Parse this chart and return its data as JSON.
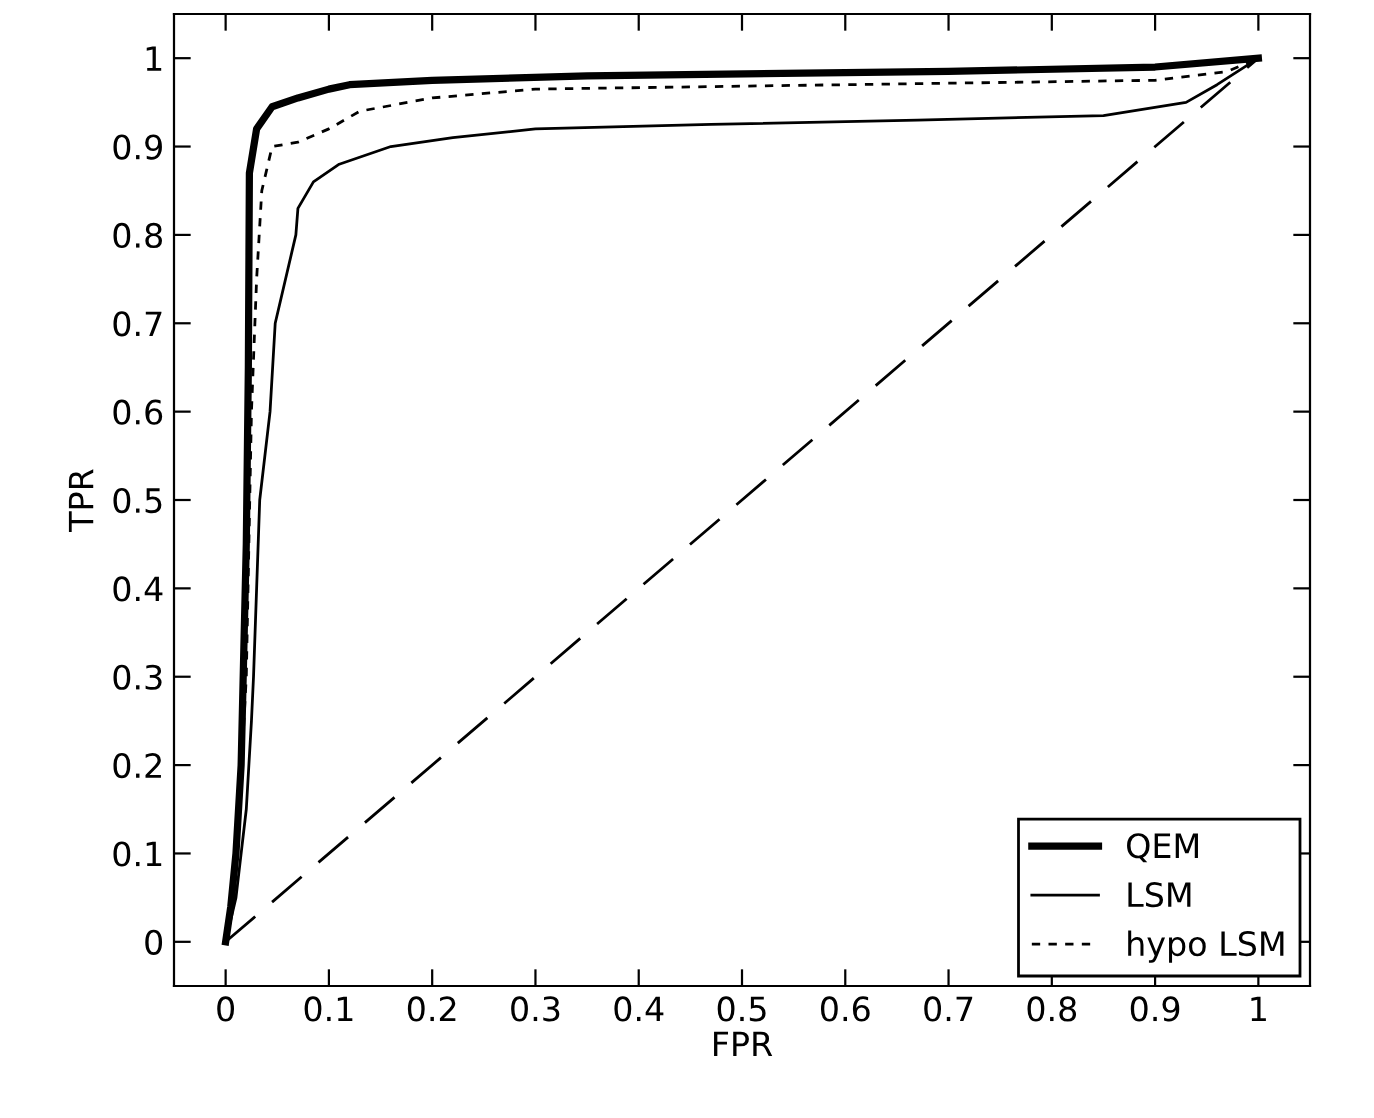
{
  "chart_data": {
    "type": "line",
    "xlabel": "FPR",
    "ylabel": "TPR",
    "xlim": [
      -0.05,
      1.05
    ],
    "ylim": [
      -0.05,
      1.05
    ],
    "xticks": [
      0,
      0.1,
      0.2,
      0.3,
      0.4,
      0.5,
      0.6,
      0.7,
      0.8,
      0.9,
      1
    ],
    "yticks": [
      0,
      0.1,
      0.2,
      0.3,
      0.4,
      0.5,
      0.6,
      0.7,
      0.8,
      0.9,
      1
    ],
    "grid": false,
    "legend": "bottom right",
    "marker": "none",
    "series": [
      {
        "name": "QEM",
        "color": "#000000",
        "line_style": "solid",
        "x": [
          0,
          0.005,
          0.01,
          0.015,
          0.02,
          0.022,
          0.023,
          0.03,
          0.045,
          0.07,
          0.1,
          0.12,
          0.2,
          0.35,
          0.7,
          0.9,
          1
        ],
        "values": [
          0,
          0.04,
          0.1,
          0.2,
          0.45,
          0.65,
          0.87,
          0.92,
          0.945,
          0.955,
          0.965,
          0.97,
          0.975,
          0.98,
          0.985,
          0.99,
          1
        ]
      },
      {
        "name": "LSM",
        "color": "#000000",
        "line_style": "solid",
        "x": [
          0,
          0.01,
          0.02,
          0.025,
          0.027,
          0.033,
          0.043,
          0.048,
          0.068,
          0.07,
          0.085,
          0.11,
          0.16,
          0.22,
          0.3,
          0.47,
          0.67,
          0.85,
          0.93,
          0.96,
          1
        ],
        "values": [
          0,
          0.05,
          0.15,
          0.25,
          0.3,
          0.5,
          0.6,
          0.7,
          0.8,
          0.83,
          0.86,
          0.88,
          0.9,
          0.91,
          0.92,
          0.925,
          0.93,
          0.935,
          0.95,
          0.97,
          1
        ]
      },
      {
        "name": "hypo LSM",
        "color": "#000000",
        "line_style": "dashed",
        "x": [
          0,
          0.01,
          0.02,
          0.025,
          0.03,
          0.035,
          0.045,
          0.07,
          0.1,
          0.13,
          0.2,
          0.3,
          0.6,
          0.9,
          0.97,
          1
        ],
        "values": [
          0,
          0.08,
          0.3,
          0.6,
          0.75,
          0.85,
          0.9,
          0.905,
          0.92,
          0.94,
          0.955,
          0.965,
          0.97,
          0.975,
          0.985,
          1
        ]
      },
      {
        "color": "#000000",
        "line_style": "longdash",
        "x": [
          0,
          1
        ],
        "values": [
          0,
          1
        ]
      }
    ]
  }
}
